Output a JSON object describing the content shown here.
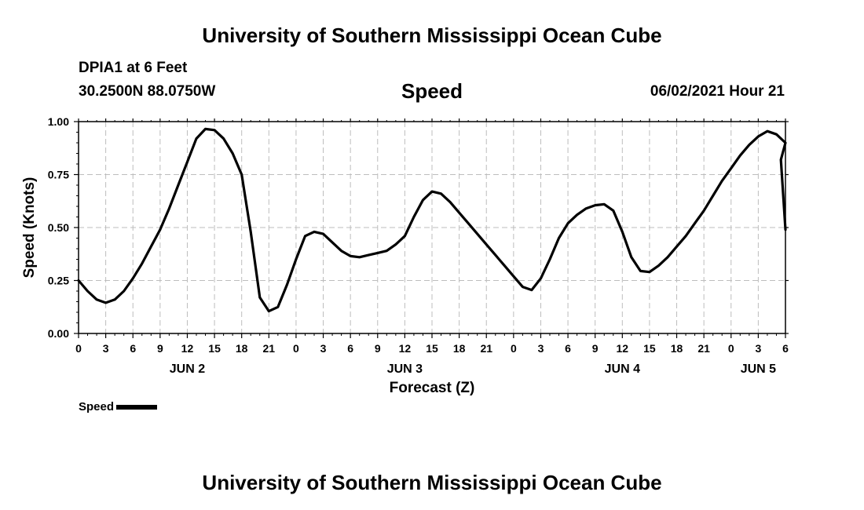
{
  "header": {
    "title": "University of Southern Mississippi Ocean Cube",
    "station": "DPIA1 at 6 Feet",
    "coordinates": "30.2500N  88.0750W",
    "variable": "Speed",
    "datetime": "06/02/2021 Hour 21"
  },
  "footer": {
    "title": "University of Southern Mississippi Ocean Cube"
  },
  "legend": {
    "label": "Speed"
  },
  "chart_data": {
    "type": "line",
    "title": "Speed",
    "xlabel": "Forecast (Z)",
    "ylabel": "Speed (Knots)",
    "xlim": [
      0,
      78
    ],
    "ylim": [
      0,
      1
    ],
    "grid": true,
    "x_unit": "hours from JUN 2 00Z",
    "y_ticks": [
      0,
      0.25,
      0.5,
      0.75,
      1.0
    ],
    "y_tick_labels": [
      "0.00",
      "0.25",
      "0.50",
      "0.75",
      "1.00"
    ],
    "x_ticks": [
      0,
      3,
      6,
      9,
      12,
      15,
      18,
      21,
      24,
      27,
      30,
      33,
      36,
      39,
      42,
      45,
      48,
      51,
      54,
      57,
      60,
      63,
      66,
      69,
      72,
      75,
      78
    ],
    "x_tick_labels": [
      "0",
      "3",
      "6",
      "9",
      "12",
      "15",
      "18",
      "21",
      "0",
      "3",
      "6",
      "9",
      "12",
      "15",
      "18",
      "21",
      "0",
      "3",
      "6",
      "9",
      "12",
      "15",
      "18",
      "21",
      "0",
      "3",
      "6"
    ],
    "day_labels": [
      {
        "hour": 12,
        "label": "JUN 2"
      },
      {
        "hour": 36,
        "label": "JUN 3"
      },
      {
        "hour": 60,
        "label": "JUN 4"
      },
      {
        "hour": 75,
        "label": "JUN 5"
      }
    ],
    "series": [
      {
        "name": "Speed",
        "color": "#000000",
        "x": [
          0,
          1,
          2,
          3,
          4,
          5,
          6,
          7,
          8,
          9,
          10,
          11,
          12,
          13,
          14,
          15,
          16,
          17,
          18,
          19,
          20,
          21,
          22,
          23,
          24,
          25,
          26,
          27,
          28,
          29,
          30,
          31,
          32,
          33,
          34,
          35,
          36,
          37,
          38,
          39,
          40,
          41,
          42,
          43,
          44,
          45,
          46,
          47,
          48,
          49,
          50,
          51,
          52,
          53,
          54,
          55,
          56,
          57,
          58,
          59,
          60,
          61,
          62,
          63,
          64,
          65,
          66,
          67,
          68,
          69,
          70,
          71,
          72,
          73,
          74,
          75,
          76,
          77,
          78
        ],
        "values": [
          0.25,
          0.2,
          0.16,
          0.145,
          0.16,
          0.2,
          0.26,
          0.33,
          0.41,
          0.49,
          0.59,
          0.7,
          0.81,
          0.92,
          0.965,
          0.96,
          0.92,
          0.85,
          0.75,
          0.48,
          0.17,
          0.105,
          0.125,
          0.23,
          0.35,
          0.46,
          0.48,
          0.47,
          0.43,
          0.39,
          0.365,
          0.36,
          0.37,
          0.38,
          0.39,
          0.42,
          0.46,
          0.55,
          0.63,
          0.67,
          0.66,
          0.62,
          0.57,
          0.52,
          0.47,
          0.42,
          0.37,
          0.32,
          0.27,
          0.22,
          0.205,
          0.26,
          0.35,
          0.45,
          0.52,
          0.56,
          0.59,
          0.605,
          0.61,
          0.58,
          0.48,
          0.36,
          0.295,
          0.29,
          0.32,
          0.36,
          0.41,
          0.46,
          0.52,
          0.58,
          0.65,
          0.72,
          0.78,
          0.84,
          0.89,
          0.93,
          0.955,
          0.94,
          0.9
        ]
      }
    ],
    "trailing_points": [
      {
        "x": 77.5,
        "y": 0.82
      },
      {
        "x": 78,
        "y": 0.49
      }
    ]
  }
}
